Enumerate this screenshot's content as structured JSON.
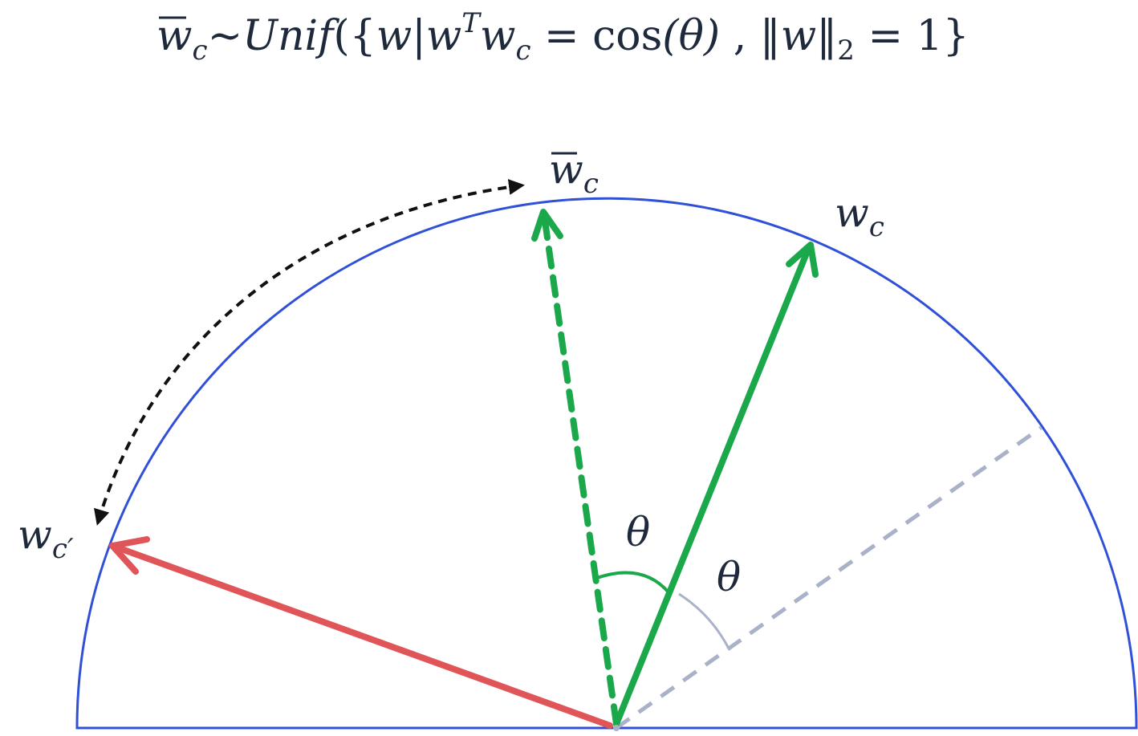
{
  "formula": {
    "lhs_base": "w",
    "lhs_sub": "c",
    "tilde": "~",
    "func": "Unif",
    "open": "({",
    "w1": "w",
    "bar": "|",
    "w2": "w",
    "sup_t": "T",
    "w3": "w",
    "sub_c": "c",
    "eq1": " = ",
    "cos": "cos",
    "theta_paren": "(θ)",
    "comma": " , ",
    "norm_open": "‖",
    "w4": "w",
    "norm_close": "‖",
    "norm_sub": "2",
    "eq2": " = 1}"
  },
  "labels": {
    "wbar_base": "w",
    "wbar_sub": "c",
    "wc_base": "w",
    "wc_sub": "c",
    "wcp_base": "w",
    "wcp_sub": "c′",
    "theta_left": "θ",
    "theta_right": "θ"
  },
  "colors": {
    "circle": "#3050d8",
    "green": "#1aa84a",
    "red": "#e05557",
    "grey": "#a9b2c8",
    "black_dash": "#111111",
    "text": "#1e2a3c"
  }
}
